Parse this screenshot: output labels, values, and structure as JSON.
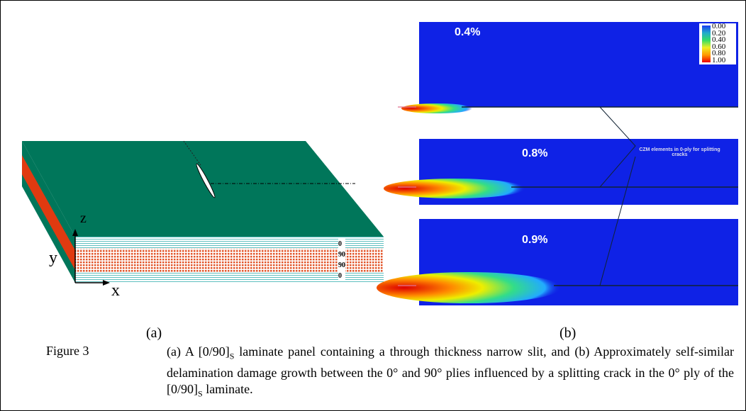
{
  "panel_a": {
    "axes": {
      "z": "z",
      "y": "y",
      "x": "x"
    },
    "ply_labels": [
      "0",
      "90",
      "90",
      "0"
    ],
    "label": "(a)"
  },
  "panel_b": {
    "strain_labels": [
      "0.4%",
      "0.8%",
      "0.9%"
    ],
    "colorbar_labels": [
      "0.00",
      "0.20",
      "0.40",
      "0.60",
      "0.80",
      "1.00"
    ],
    "annotation": "CZM elements in 0-ply for splitting cracks",
    "label": "(b)"
  },
  "caption": {
    "number": "Figure 3",
    "parts": [
      "(a) A [0/90]",
      "S",
      " laminate panel containing a through thickness narrow slit, and (b) Approximately self-similar delamination damage growth between the 0° and 90° plies influenced by a splitting crack in the 0° ply of the [0/90]",
      "S",
      " laminate."
    ]
  }
}
